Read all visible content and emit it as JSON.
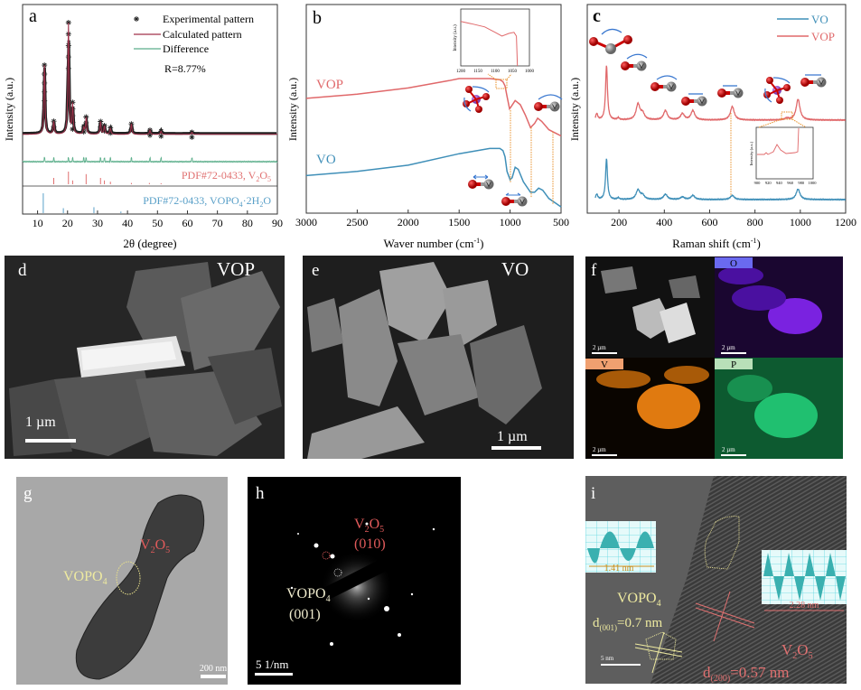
{
  "colors": {
    "exp": "#222222",
    "calc": "#a0304a",
    "diff": "#5aae8a",
    "vop": "#e0686a",
    "vo": "#3f8fb8",
    "v2o5_ref": "#e07070",
    "vopo4_ref": "#5aa0c8",
    "guide": "#e8902a"
  },
  "chart_data": [
    {
      "panel": "a",
      "type": "line",
      "xlabel": "2θ (degree)",
      "ylabel": "Intensity (a.u.)",
      "xlim": [
        5,
        90
      ],
      "xticks": [
        "10",
        "20",
        "30",
        "40",
        "50",
        "60",
        "70",
        "80",
        "90"
      ],
      "legend": [
        "Experimental pattern",
        "Calculated pattern",
        "Difference"
      ],
      "legend_position": "top-right",
      "annotation": "R=8.77%",
      "peaks": [
        [
          12.3,
          0.33
        ],
        [
          15.4,
          0.06
        ],
        [
          20.3,
          0.53
        ],
        [
          21.7,
          0.14
        ],
        [
          25.4,
          0.03
        ],
        [
          26.2,
          0.08
        ],
        [
          31.0,
          0.06
        ],
        [
          32.3,
          0.04
        ],
        [
          34.3,
          0.03
        ],
        [
          41.3,
          0.05
        ],
        [
          47.5,
          0.02
        ],
        [
          51.2,
          0.015
        ],
        [
          61.5,
          0.01
        ]
      ],
      "reference_v2o5": {
        "label": "PDF#72-0433, V",
        "sub1": "2",
        "mid": "O",
        "sub2": "5",
        "sticks": [
          [
            15.4,
            0.5
          ],
          [
            20.3,
            1
          ],
          [
            21.7,
            0.3
          ],
          [
            26.2,
            0.8
          ],
          [
            31.0,
            0.5
          ],
          [
            32.3,
            0.3
          ],
          [
            34.3,
            0.2
          ],
          [
            41.3,
            0.1
          ],
          [
            47.3,
            0.1
          ],
          [
            51.2,
            0.08
          ]
        ]
      },
      "reference_vopo4": {
        "label": "PDF#72-0433, VOPO",
        "sub1": "4",
        "mid": "·2H",
        "sub2": "2",
        "tail": "O",
        "sticks": [
          [
            11.9,
            1
          ],
          [
            18.6,
            0.25
          ],
          [
            28.8,
            0.3
          ],
          [
            37.8,
            0.08
          ]
        ]
      }
    },
    {
      "panel": "b",
      "type": "line",
      "xlabel": "Waver number (cm",
      "xlabel_sup": "-1",
      "xlabel_tail": ")",
      "ylabel": "Intensity (a.u.)",
      "xlim": [
        3000,
        500
      ],
      "xticks": [
        "3000",
        "2500",
        "2000",
        "1500",
        "1000",
        "500"
      ],
      "series": [
        {
          "name": "VOP",
          "points": [
            [
              3000,
              0.55
            ],
            [
              2500,
              0.57
            ],
            [
              2000,
              0.6
            ],
            [
              1600,
              0.635
            ],
            [
              1500,
              0.645
            ],
            [
              1200,
              0.645
            ],
            [
              1100,
              0.64
            ],
            [
              1070,
              0.63
            ],
            [
              1050,
              0.61
            ],
            [
              1030,
              0.56
            ],
            [
              1005,
              0.5
            ],
            [
              990,
              0.51
            ],
            [
              950,
              0.54
            ],
            [
              900,
              0.52
            ],
            [
              850,
              0.47
            ],
            [
              800,
              0.41
            ],
            [
              760,
              0.43
            ],
            [
              730,
              0.455
            ],
            [
              690,
              0.44
            ],
            [
              620,
              0.4
            ],
            [
              580,
              0.39
            ],
            [
              540,
              0.38
            ],
            [
              500,
              0.37
            ]
          ]
        },
        {
          "name": "VO",
          "points": [
            [
              3000,
              0.18
            ],
            [
              2500,
              0.2
            ],
            [
              2000,
              0.23
            ],
            [
              1500,
              0.285
            ],
            [
              1200,
              0.31
            ],
            [
              1100,
              0.31
            ],
            [
              1070,
              0.3
            ],
            [
              1050,
              0.27
            ],
            [
              1030,
              0.2
            ],
            [
              1000,
              0.16
            ],
            [
              980,
              0.17
            ],
            [
              950,
              0.22
            ],
            [
              920,
              0.21
            ],
            [
              870,
              0.15
            ],
            [
              800,
              0.1
            ],
            [
              760,
              0.1
            ],
            [
              720,
              0.12
            ],
            [
              680,
              0.11
            ],
            [
              620,
              0.07
            ],
            [
              560,
              0.05
            ],
            [
              500,
              0.03
            ]
          ]
        }
      ],
      "inset": {
        "ylabel": "Intensity (a.u.)",
        "xlim": [
          1200,
          1000
        ],
        "xticks": [
          "1200",
          "1150",
          "1100",
          "1050",
          "1000"
        ],
        "points": [
          [
            1200,
            0.82
          ],
          [
            1170,
            0.78
          ],
          [
            1130,
            0.72
          ],
          [
            1100,
            0.62
          ],
          [
            1080,
            0.55
          ],
          [
            1060,
            0.6
          ],
          [
            1045,
            0.62
          ],
          [
            1038,
            0.55
          ],
          [
            1035,
            0.0
          ]
        ]
      }
    },
    {
      "panel": "c",
      "type": "line",
      "xlabel": "Raman shift (cm",
      "xlabel_sup": "-1",
      "xlabel_tail": ")",
      "ylabel": "Intensity (a.u.)",
      "xlim": [
        60,
        1200
      ],
      "xticks": [
        "200",
        "400",
        "600",
        "800",
        "1000",
        "1200"
      ],
      "legend": [
        "VO",
        "VOP"
      ],
      "legend_position": "top-right",
      "series": [
        {
          "name": "VOP",
          "baseline": 0.446,
          "peaks": [
            [
              102,
              0.03
            ],
            [
              145,
              0.26
            ],
            [
              197,
              0.01
            ],
            [
              284,
              0.075
            ],
            [
              304,
              0.03
            ],
            [
              405,
              0.045
            ],
            [
              480,
              0.03
            ],
            [
              526,
              0.045
            ],
            [
              700,
              0.065
            ],
            [
              940,
              0.008
            ],
            [
              990,
              0.1
            ]
          ]
        },
        {
          "name": "VO",
          "baseline": 0.065,
          "peaks": [
            [
              102,
              0.025
            ],
            [
              145,
              0.195
            ],
            [
              197,
              0.008
            ],
            [
              284,
              0.045
            ],
            [
              304,
              0.02
            ],
            [
              405,
              0.025
            ],
            [
              480,
              0.012
            ],
            [
              526,
              0.02
            ],
            [
              700,
              0.02
            ],
            [
              990,
              0.05
            ]
          ]
        }
      ],
      "inset": {
        "ylabel": "Intensity (a.u.)",
        "xlim": [
          900,
          1000
        ],
        "xticks": [
          "900",
          "920",
          "940",
          "960",
          "980",
          "1000"
        ]
      }
    }
  ],
  "panels": {
    "a": "a",
    "b": "b",
    "c": "c",
    "d": "d",
    "e": "e",
    "f": "f",
    "g": "g",
    "h": "h",
    "i": "i",
    "b_vop": "VOP",
    "b_vo": "VO",
    "d_label": "VOP",
    "d_scale": "1 µm",
    "e_label": "VO",
    "e_scale": "1 µm",
    "f_scale": "2 µm",
    "f_O": "O",
    "f_V": "V",
    "f_P": "P",
    "g_v2o5_a": "V",
    "g_v2o5_s1": "2",
    "g_v2o5_b": "O",
    "g_v2o5_s2": "5",
    "g_vopo4": "VOPO",
    "g_vopo4_s": "4",
    "g_scale": "200 nm",
    "h_v2o5_a": "V",
    "h_v2o5_s1": "2",
    "h_v2o5_b": "O",
    "h_v2o5_s2": "5",
    "h_010": "(010)",
    "h_vopo4": "VOPO",
    "h_vopo4_s": "4",
    "h_001": "(001)",
    "h_scale": "5 1/nm",
    "i_141": "1.41 nm",
    "i_228": "2.28 nm",
    "i_vopo4": "VOPO",
    "i_vopo4_s": "4",
    "i_d001": "d",
    "i_d001_s": "(001)",
    "i_d001_v": "=0.7 nm",
    "i_v2o5_a": "V",
    "i_v2o5_s1": "2",
    "i_v2o5_b": "O",
    "i_v2o5_s2": "5",
    "i_d200": "d",
    "i_d200_s": "(200)",
    "i_d200_v": "=0.57 nm",
    "i_scale": "5 nm"
  }
}
